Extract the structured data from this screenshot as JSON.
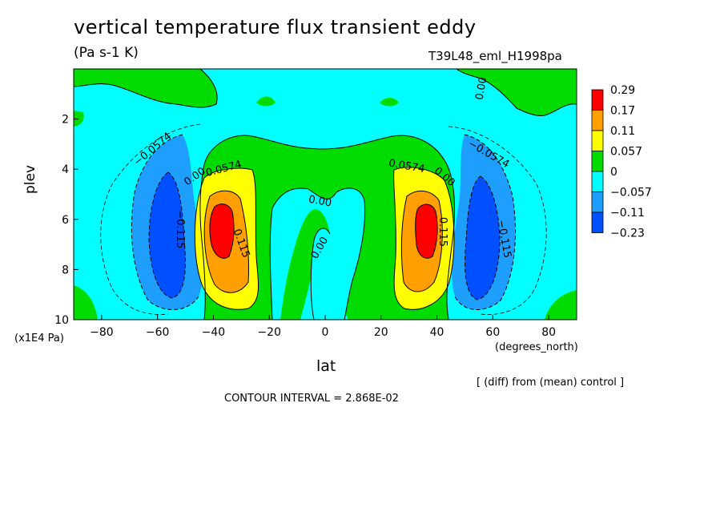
{
  "chart_data": {
    "type": "heatmap",
    "title": "vertical temperature flux transient eddy",
    "units_label": "(Pa s-1 K)",
    "run_label": "T39L48_eml_H1998pa",
    "xlabel": "lat",
    "x_unit_label": "(degrees_north)",
    "ylabel": "plev",
    "y_unit_label": "(x1E4 Pa)",
    "diff_label": "[ (diff) from (mean) control ]",
    "contour_interval_label": "CONTOUR INTERVAL = 2.868E-02",
    "xlim": [
      -90,
      90
    ],
    "ylim": [
      10,
      0
    ],
    "x_ticks": [
      -80,
      -60,
      -40,
      -20,
      0,
      20,
      40,
      60,
      80
    ],
    "x_tick_labels": [
      "−80",
      "−60",
      "−40",
      "−20",
      "0",
      "20",
      "40",
      "60",
      "80"
    ],
    "y_ticks": [
      2,
      4,
      6,
      8,
      10
    ],
    "y_tick_labels": [
      "2",
      "4",
      "6",
      "8",
      "10"
    ],
    "colorbar": {
      "labels": [
        "0.29",
        "0.17",
        "0.11",
        "0.057",
        "0",
        "−0.057",
        "−0.11",
        "−0.23"
      ],
      "colors": [
        "#ff0000",
        "#ff9f00",
        "#ffff00",
        "#00dc00",
        "#00ffff",
        "#1e9fff",
        "#0050ff"
      ]
    },
    "contour_labels": [
      {
        "text": "0.00",
        "x": 57,
        "y": 0.8,
        "rotate": -80
      },
      {
        "text": "−0.0574",
        "x": -61,
        "y": 3.3,
        "rotate": -40
      },
      {
        "text": "0.00",
        "x": -46,
        "y": 4.4,
        "rotate": -35
      },
      {
        "text": "0.0574",
        "x": -36,
        "y": 4.1,
        "rotate": -15
      },
      {
        "text": "−0.115",
        "x": -53,
        "y": 6.4,
        "rotate": 90
      },
      {
        "text": "0.115",
        "x": -31,
        "y": 7.0,
        "rotate": 70
      },
      {
        "text": "0.00",
        "x": -2,
        "y": 5.4,
        "rotate": 10
      },
      {
        "text": "0.00",
        "x": -1,
        "y": 7.2,
        "rotate": -60
      },
      {
        "text": "0.0574",
        "x": 29,
        "y": 4.0,
        "rotate": 10
      },
      {
        "text": "0.00",
        "x": 42,
        "y": 4.4,
        "rotate": 40
      },
      {
        "text": "0.115",
        "x": 41,
        "y": 6.5,
        "rotate": 90
      },
      {
        "text": "−0.0574",
        "x": 58,
        "y": 3.5,
        "rotate": 30
      },
      {
        "text": "−0.115",
        "x": 63,
        "y": 6.8,
        "rotate": 80
      }
    ]
  }
}
